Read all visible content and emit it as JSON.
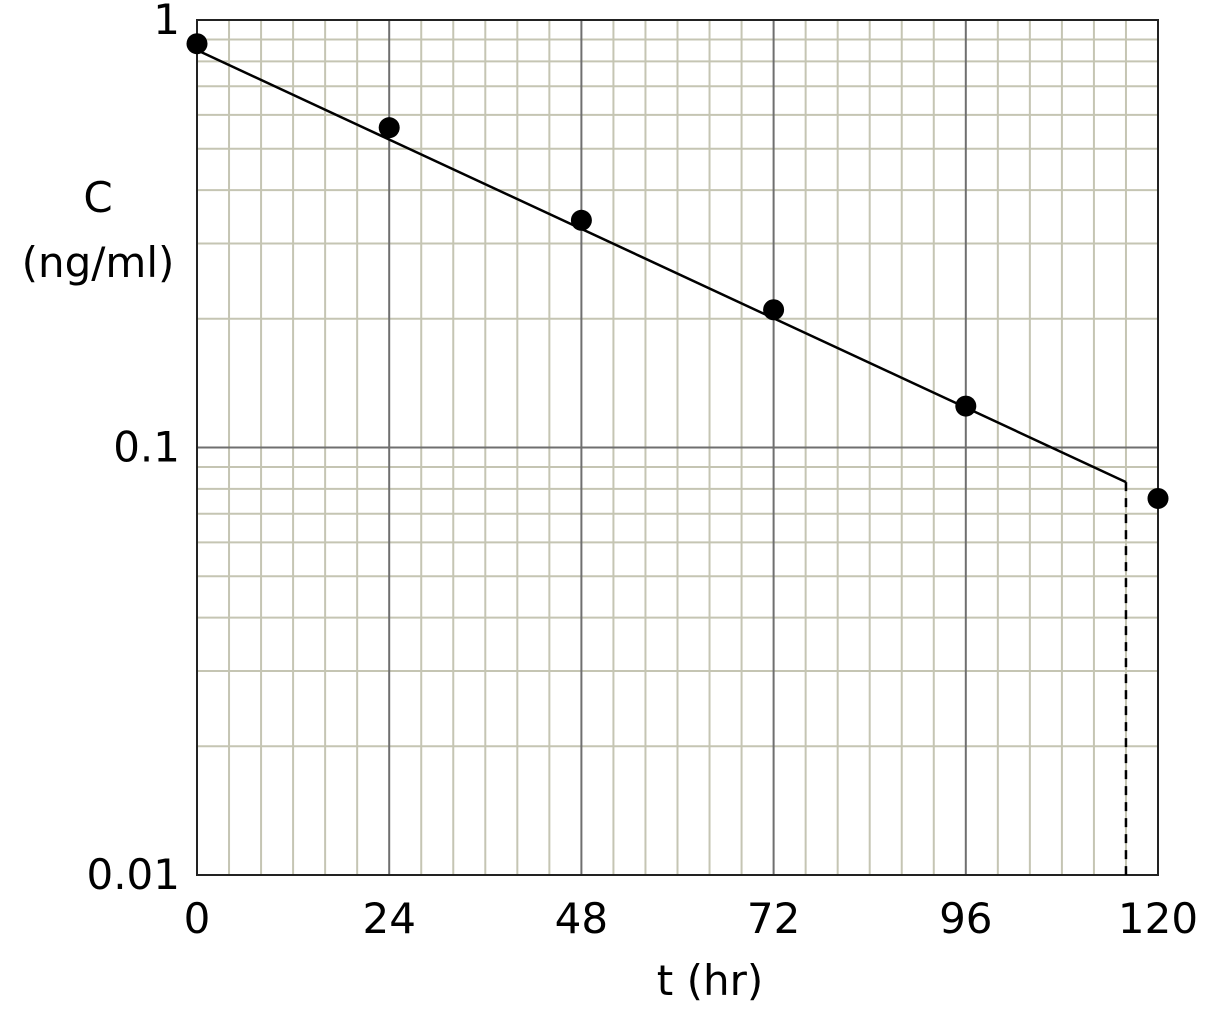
{
  "chart_data": {
    "type": "scatter",
    "y_scale": "log",
    "xlabel": "t  (hr)",
    "ylabel_line1": "C",
    "ylabel_line2": "(ng/ml)",
    "xlim": [
      0,
      120
    ],
    "ylim": [
      0.01,
      1
    ],
    "x_ticks": [
      0,
      24,
      48,
      72,
      96,
      120
    ],
    "x_tick_labels": [
      "0",
      "24",
      "48",
      "72",
      "96",
      "120"
    ],
    "y_ticks": [
      0.01,
      0.1,
      1
    ],
    "y_tick_labels": [
      "0.01",
      "0.1",
      "1"
    ],
    "grid": true,
    "points": [
      {
        "x": 0,
        "y": 0.88
      },
      {
        "x": 24,
        "y": 0.56
      },
      {
        "x": 48,
        "y": 0.34
      },
      {
        "x": 72,
        "y": 0.21
      },
      {
        "x": 96,
        "y": 0.125
      },
      {
        "x": 120,
        "y": 0.076
      }
    ],
    "fit_line": {
      "x": [
        0,
        116
      ],
      "y": [
        0.85,
        0.083
      ]
    },
    "dashed_drop": {
      "x": 116,
      "y_top": 0.083,
      "y_bottom": 0.01
    },
    "colors": {
      "grid_minor": "#c5c5b3",
      "grid_major": "#6f6f6f",
      "marks": "#000000"
    }
  }
}
